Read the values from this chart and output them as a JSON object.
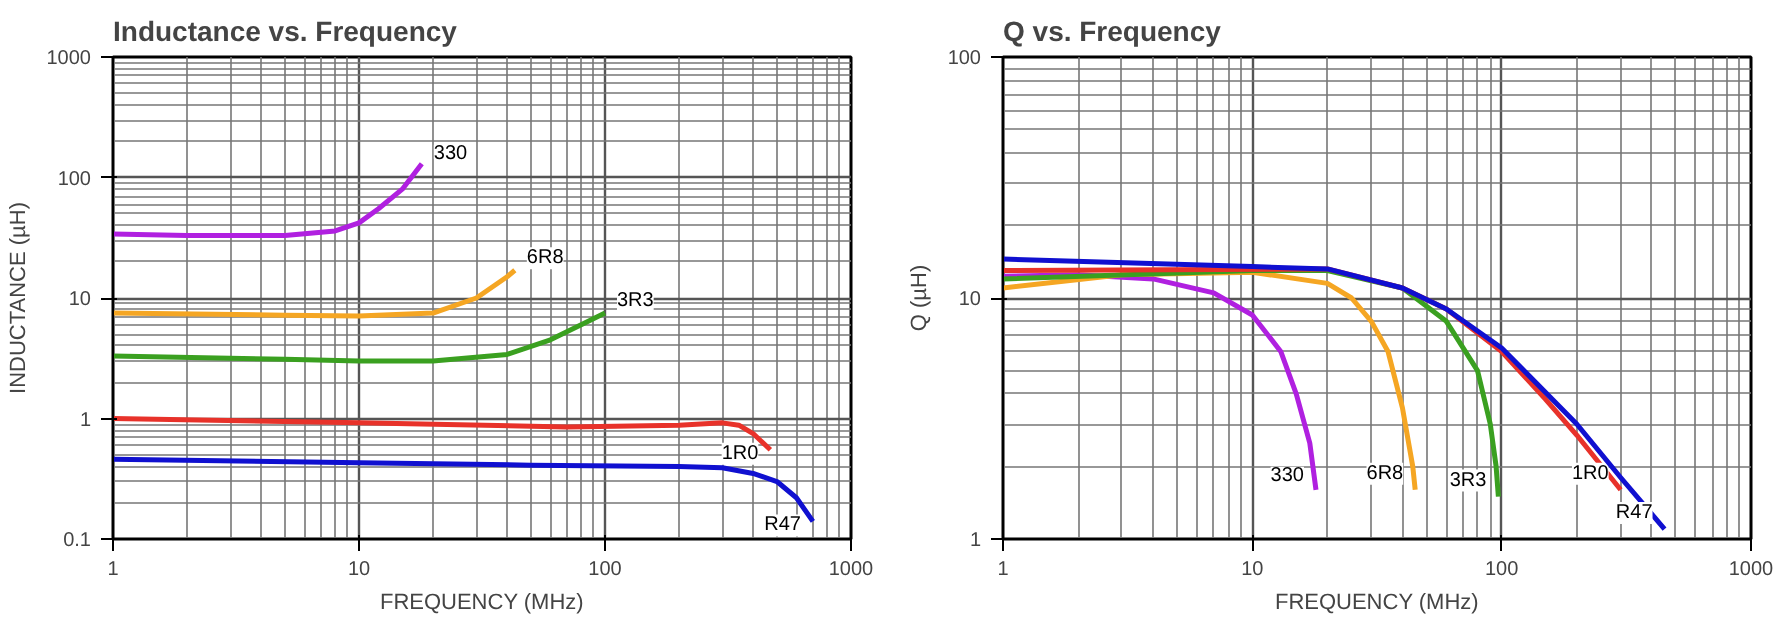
{
  "chart_data": [
    {
      "type": "line",
      "title": "Inductance vs. Frequency",
      "xlabel": "FREQUENCY (MHz)",
      "ylabel": "INDUCTANCE (µH)",
      "log": "xy",
      "grid": true,
      "xlim": [
        1,
        1000
      ],
      "ylim": [
        0.1,
        1000
      ],
      "xticks": [
        1,
        10,
        100,
        1000
      ],
      "yticks": [
        0.1,
        1,
        10,
        100,
        1000
      ],
      "series": [
        {
          "name": "330",
          "color": "#b020e0",
          "x": [
            1,
            2,
            5,
            8,
            10,
            12,
            15,
            18
          ],
          "values": [
            34,
            33,
            33,
            36,
            42,
            55,
            80,
            130
          ]
        },
        {
          "name": "6R8",
          "color": "#f5a623",
          "x": [
            1,
            5,
            10,
            20,
            30,
            40,
            43
          ],
          "values": [
            7.5,
            7.2,
            7.1,
            7.5,
            10,
            15,
            17
          ]
        },
        {
          "name": "3R3",
          "color": "#3aa020",
          "x": [
            1,
            5,
            10,
            20,
            40,
            60,
            80,
            100
          ],
          "values": [
            3.3,
            3.1,
            3.0,
            3.0,
            3.4,
            4.5,
            6,
            7.5
          ]
        },
        {
          "name": "1R0",
          "color": "#e8322a",
          "x": [
            1,
            10,
            70,
            200,
            300,
            350,
            400,
            470
          ],
          "values": [
            1.0,
            0.92,
            0.85,
            0.88,
            0.92,
            0.88,
            0.75,
            0.55
          ]
        },
        {
          "name": "R47",
          "color": "#1010d0",
          "x": [
            1,
            10,
            50,
            200,
            300,
            400,
            500,
            600,
            700
          ],
          "values": [
            0.46,
            0.43,
            0.41,
            0.4,
            0.39,
            0.35,
            0.3,
            0.22,
            0.14
          ]
        }
      ]
    },
    {
      "type": "line",
      "title": "Q vs. Frequency",
      "xlabel": "FREQUENCY (MHz)",
      "ylabel": "Q (µH)",
      "log": "xy",
      "grid": true,
      "xlim": [
        1,
        1000
      ],
      "ylim": [
        1,
        100
      ],
      "xticks": [
        1,
        10,
        100,
        1000
      ],
      "yticks": [
        1,
        10,
        100
      ],
      "series": [
        {
          "name": "330",
          "color": "#b020e0",
          "x": [
            1,
            2,
            4,
            7,
            10,
            13,
            15,
            17,
            18
          ],
          "values": [
            12.3,
            12.5,
            12,
            10.5,
            8.5,
            6,
            4,
            2.5,
            1.6
          ]
        },
        {
          "name": "6R8",
          "color": "#f5a623",
          "x": [
            1,
            3,
            10,
            20,
            25,
            30,
            35,
            40,
            44,
            45
          ],
          "values": [
            11,
            12.5,
            12.8,
            11.5,
            10,
            8,
            6,
            3.5,
            2,
            1.6
          ]
        },
        {
          "name": "3R3",
          "color": "#3aa020",
          "x": [
            1,
            10,
            20,
            40,
            60,
            80,
            90,
            95,
            97
          ],
          "values": [
            12,
            13,
            13,
            11,
            8,
            5,
            3,
            2,
            1.5
          ]
        },
        {
          "name": "1R0",
          "color": "#e8322a",
          "x": [
            1,
            20,
            40,
            60,
            100,
            150,
            200,
            300
          ],
          "values": [
            13,
            13.2,
            11,
            9,
            6,
            3.8,
            2.7,
            1.6
          ]
        },
        {
          "name": "R47",
          "color": "#1010d0",
          "x": [
            1,
            10,
            20,
            40,
            60,
            100,
            200,
            300,
            450
          ],
          "values": [
            14.5,
            13.5,
            13.2,
            11,
            9,
            6.2,
            3,
            1.8,
            1.1
          ]
        }
      ]
    }
  ]
}
